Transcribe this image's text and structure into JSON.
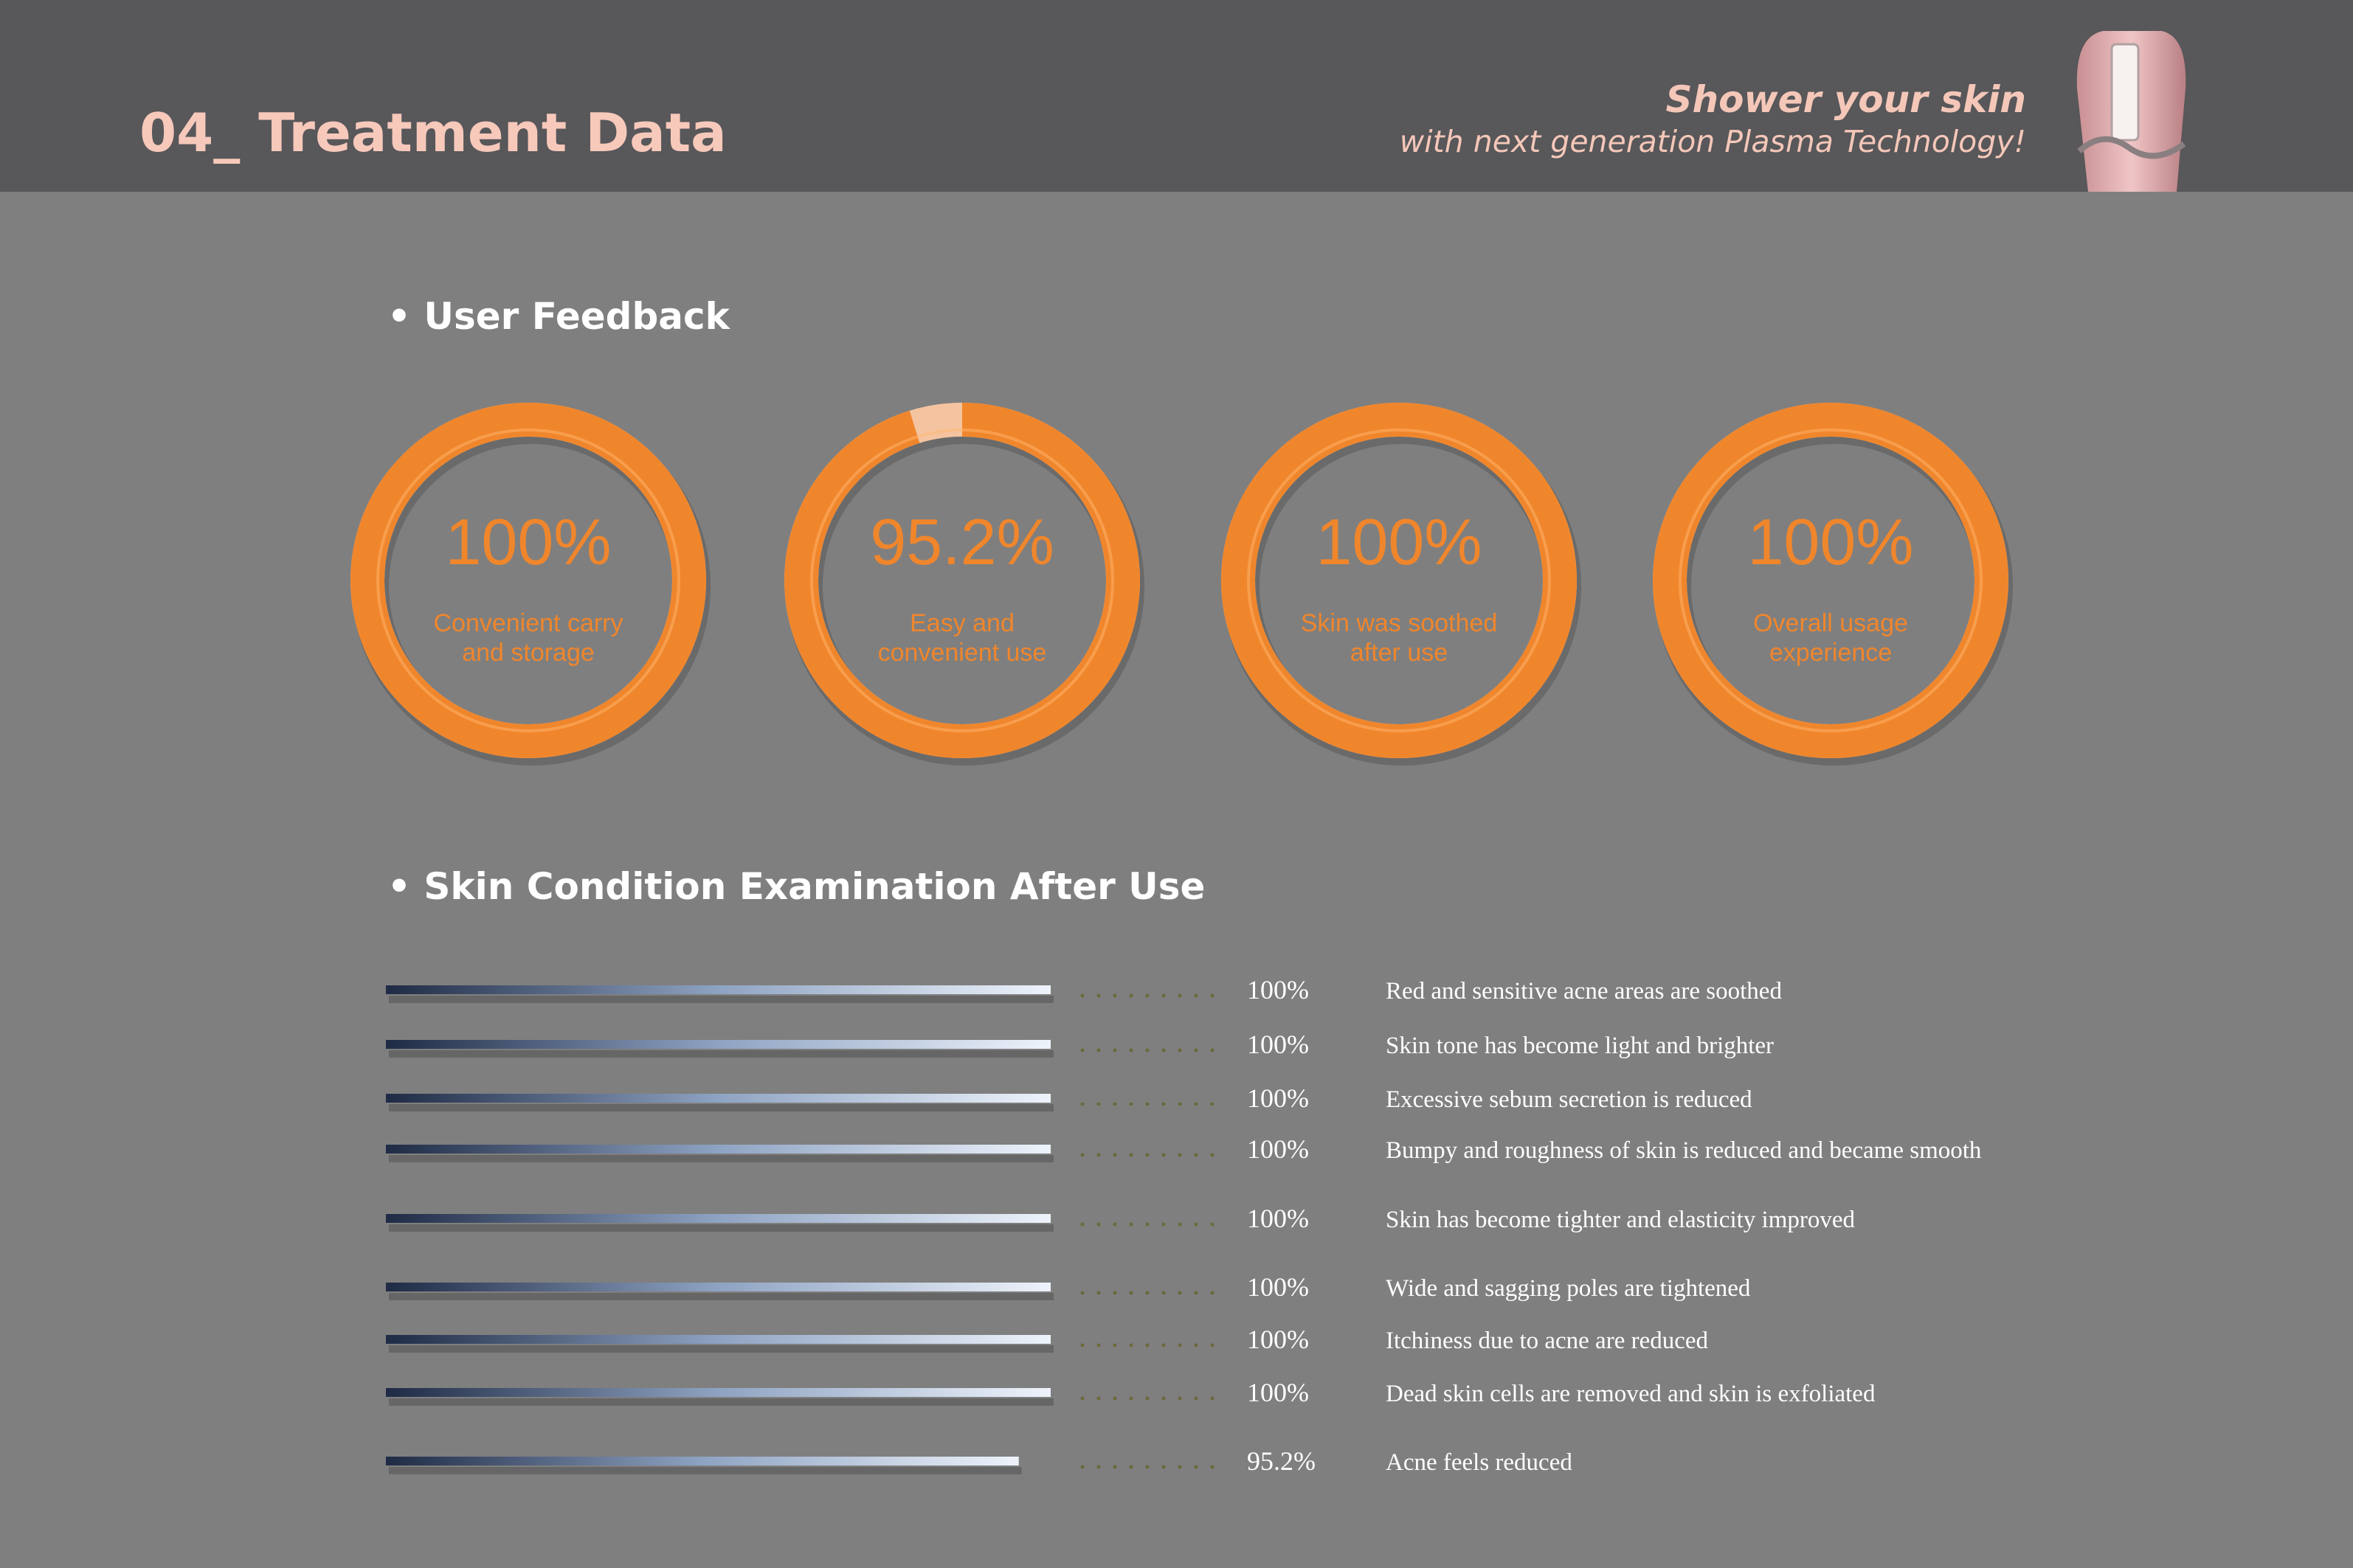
{
  "header": {
    "title": "04_ Treatment Data",
    "tagline": [
      "Shower your skin",
      "with next generation Plasma Technology!"
    ]
  },
  "chart_data": [
    {
      "type": "donut",
      "title": "User Feedback",
      "categories": [
        "Convenient carry\nand storage",
        "Easy and\nconvenient use",
        "Skin was soothed\nafter use",
        "Overall usage\nexperience"
      ],
      "values": [
        100,
        95.2,
        100,
        100
      ],
      "value_labels": [
        "100%",
        "95.2%",
        "100%",
        "100%"
      ],
      "color": "#f0862c"
    },
    {
      "type": "bar",
      "title": "Skin Condition Examination After Use",
      "orientation": "horizontal",
      "categories": [
        "Red and sensitive acne areas are soothed",
        "Skin tone has become light and brighter",
        "Excessive sebum secretion is reduced",
        "Bumpy and roughness of skin is reduced and became smooth",
        "Skin has become tighter and elasticity improved",
        "Wide and sagging poles are tightened",
        "Itchiness due to acne are reduced",
        "Dead skin cells are removed and skin is exfoliated",
        "Acne feels reduced"
      ],
      "values": [
        100,
        100,
        100,
        100,
        100,
        100,
        100,
        100,
        95.2
      ],
      "value_labels": [
        "100%",
        "100%",
        "100%",
        "100%",
        "100%",
        "100%",
        "100%",
        "100%",
        "95.2%"
      ],
      "xlim": [
        0,
        100
      ]
    }
  ]
}
